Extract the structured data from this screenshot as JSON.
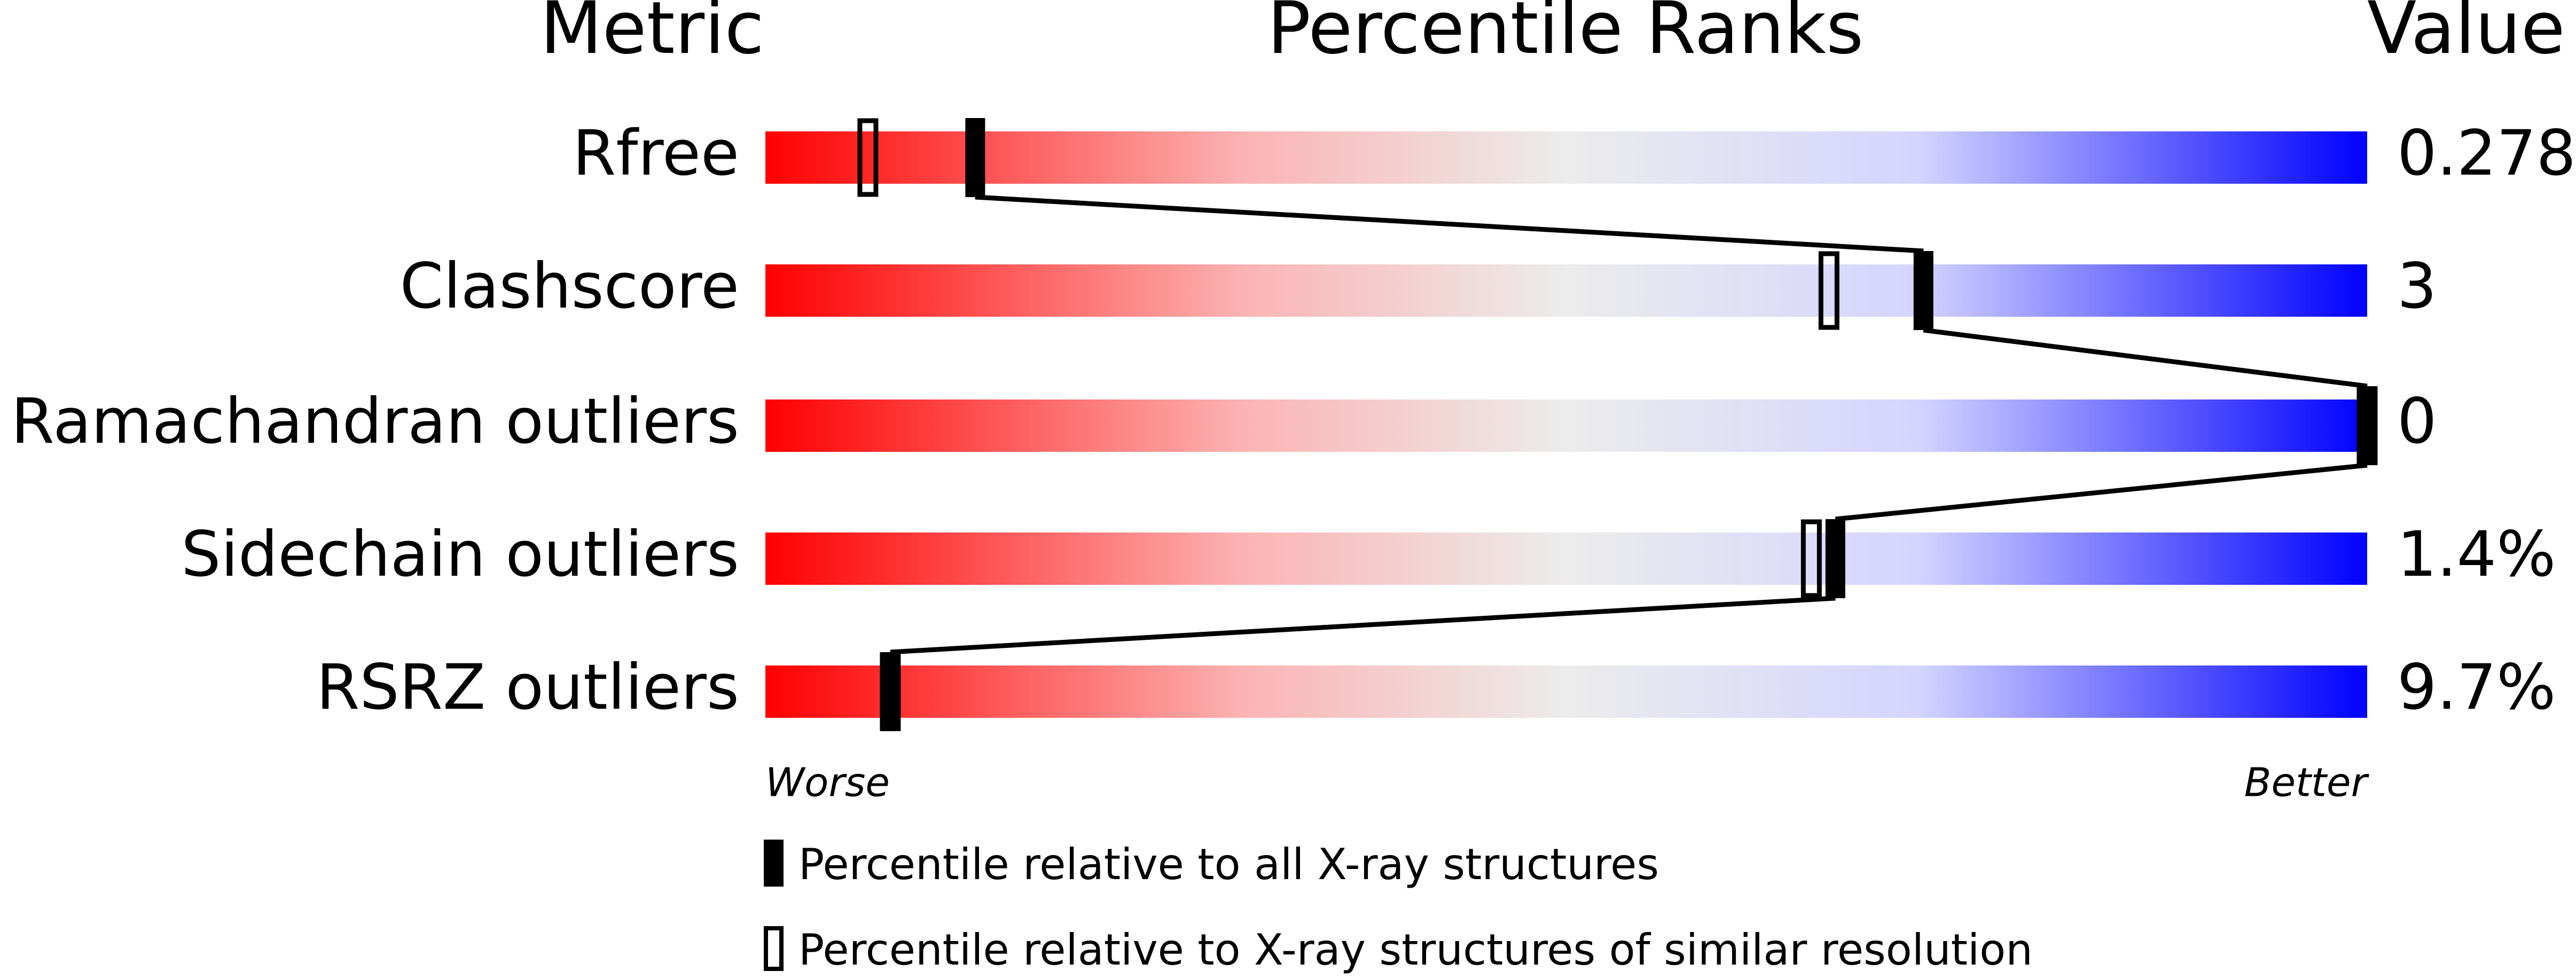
{
  "chart_data": {
    "type": "slider",
    "metric_header": "Metric",
    "title": "Percentile Ranks",
    "value_header": "Value",
    "categories": [
      "Rfree",
      "Clashscore",
      "Ramachandran outliers",
      "Sidechain outliers",
      "RSRZ outliers"
    ],
    "series": [
      {
        "name": "Percentile relative to all X-ray structures",
        "color": "#000000",
        "style": "filled",
        "values": [
          13.1,
          72.3,
          100,
          66.8,
          7.8
        ]
      },
      {
        "name": "Percentile relative to X-ray structures of similar resolution",
        "color": "#000000",
        "style": "open",
        "values": [
          6.4,
          66.4,
          100,
          65.3,
          7.8
        ]
      }
    ],
    "metric_values": [
      "0.278",
      "3",
      "0",
      "1.4%",
      "9.7%"
    ],
    "xlim": [
      0,
      100
    ],
    "xlabel_low": "Worse",
    "xlabel_high": "Better"
  }
}
